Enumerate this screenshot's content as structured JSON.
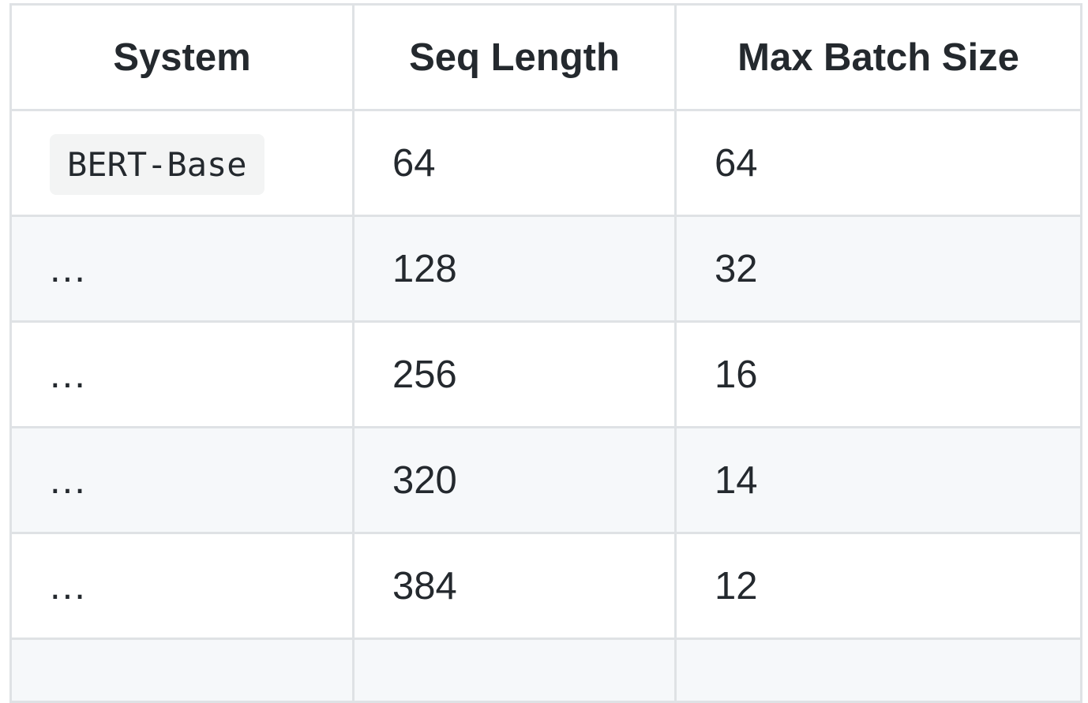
{
  "table": {
    "headers": [
      "System",
      "Seq Length",
      "Max Batch Size"
    ],
    "rows": [
      {
        "system": "BERT-Base",
        "seq_length": "64",
        "max_batch_size": "64"
      },
      {
        "system": "...",
        "seq_length": "128",
        "max_batch_size": "32"
      },
      {
        "system": "...",
        "seq_length": "256",
        "max_batch_size": "16"
      },
      {
        "system": "...",
        "seq_length": "320",
        "max_batch_size": "14"
      },
      {
        "system": "...",
        "seq_length": "384",
        "max_batch_size": "12"
      }
    ]
  },
  "colors": {
    "border": "#dfe2e5",
    "row_alt_bg": "#f6f8fa",
    "text": "#24292e",
    "code_bg": "#f3f4f4"
  }
}
